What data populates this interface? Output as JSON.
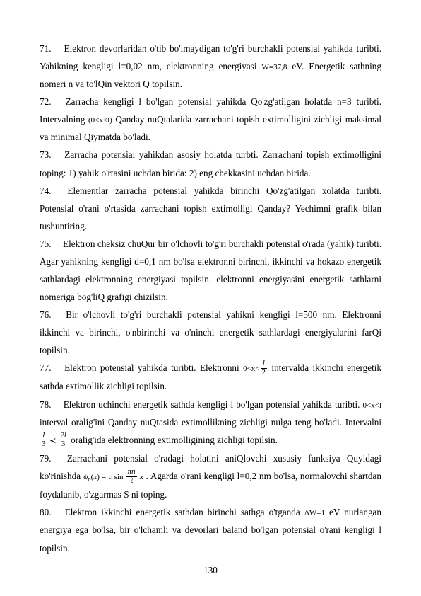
{
  "page": {
    "number": "130",
    "font_family": "Times New Roman",
    "body_font_size_pt": 10,
    "line_height": 1.9,
    "text_color": "#000000",
    "background_color": "#ffffff"
  },
  "paragraphs": [
    {
      "text_parts": [
        "71.  Elektron devorlaridan o'tib bo'lmaydigan to'g'ri burchakli potensial yahikda turibti. Yahikning kengligi l=0,02 nm, elektronning energiyasi ",
        {
          "span": "W=37,8",
          "class": "small-inline"
        },
        " eV. Energetik sathning nomeri n va to'lQin vektori Q topilsin."
      ]
    },
    {
      "text_parts": [
        "72.  Zarracha kengligi l bo'lgan potensial yahikda Qo'zg'atilgan holatda n=3 turibti. Intervalning ",
        {
          "span": "(0<x<l)",
          "class": "small-inline"
        },
        " Qanday nuQtalarida zarrachani topish extimolligini zichligi maksimal va minimal Qiymatda bo'ladi."
      ]
    },
    {
      "text_parts": [
        "73.  Zarracha potensial yahikdan asosiy holatda turbti. Zarrachani topish  extimolligini toping: 1) yahik o'rtasini uchdan birida: 2) eng chekkasini uchdan birida."
      ]
    },
    {
      "text_parts": [
        "74.  Elementlar zarracha potensial yahikda birinchi Qo'zg'atilgan xolatda turibti. Potensial o'rani o'rtasida zarrachani topish extimolligi Qanday? Yechimni grafik bilan tushuntiring."
      ]
    },
    {
      "text_parts": [
        "75.  Elektron cheksiz chuQur bir o'lchovli to'g'ri burchakli potensial o'rada (yahik) turibti. Agar yahikning kengligi d=0,1 nm bo'lsa elektronni birinchi, ikkinchi va hokazo energetik sathlardagi elektronning energiyasi topilsin. elektronni energiyasini energetik sathlarni nomeriga bog'liQ grafigi chizilsin."
      ]
    },
    {
      "text_parts": [
        "76.  Bir o'lchovli to'g'ri burchakli potensial yahikni kengligi l=500 nm. Elektronni ikkinchi va birinchi, o'nbirinchi va o'ninchi energetik sathlardagi energiyalarini farQi topilsin."
      ]
    },
    {
      "text_parts": [
        "77.  Elektron potensial yahikda turibti. Elektronni ",
        {
          "span": "0<x<",
          "class": "small-inline"
        },
        {
          "frac": {
            "num": "l",
            "den": "2",
            "ital_num": true
          }
        },
        "  intervalda ikkinchi energetik sathda extimollik zichligi topilsin."
      ]
    },
    {
      "text_parts": [
        "78.  Elektron uchinchi energetik sathda kengligi l bo'lgan potensial yahikda turibti. ",
        {
          "span": "0<x<l",
          "class": "small-inline"
        },
        " interval oralig'ini Qanday nuQtasida extimollikning zichligi nulga teng bo'ladi. Intervalni ",
        {
          "frac": {
            "num": "l",
            "den": "3",
            "ital_num": true
          }
        },
        {
          "span": " ≺ ",
          "class": "small-inline"
        },
        {
          "frac": {
            "num": "2l",
            "den": "3",
            "ital_num": true
          }
        },
        "  oralig'ida elektronning extimolligining zichligi topilsin."
      ]
    },
    {
      "text_parts": [
        "79.  Zarrachani potensial o'radagi holatini aniQlovchi xususiy funksiya Quyidagi ko'rinishda ",
        {
          "psi_expr": true
        },
        " . Agarda o'rani kengligi l=0,2 nm bo'lsa, normalovchi shartdan foydalanib, o'zgarmas S ni toping."
      ]
    },
    {
      "text_parts": [
        "80.  Elektron ikkinchi energetik sathdan birinchi sathga o'tganda  ",
        {
          "span": "ΔW=1",
          "class": "small-inline"
        },
        "  eV nurlangan energiya ega bo'lsa, bir o'lchamli va devorlari baland bo'lgan potensial o'rani kengligi l topilsin."
      ]
    }
  ]
}
